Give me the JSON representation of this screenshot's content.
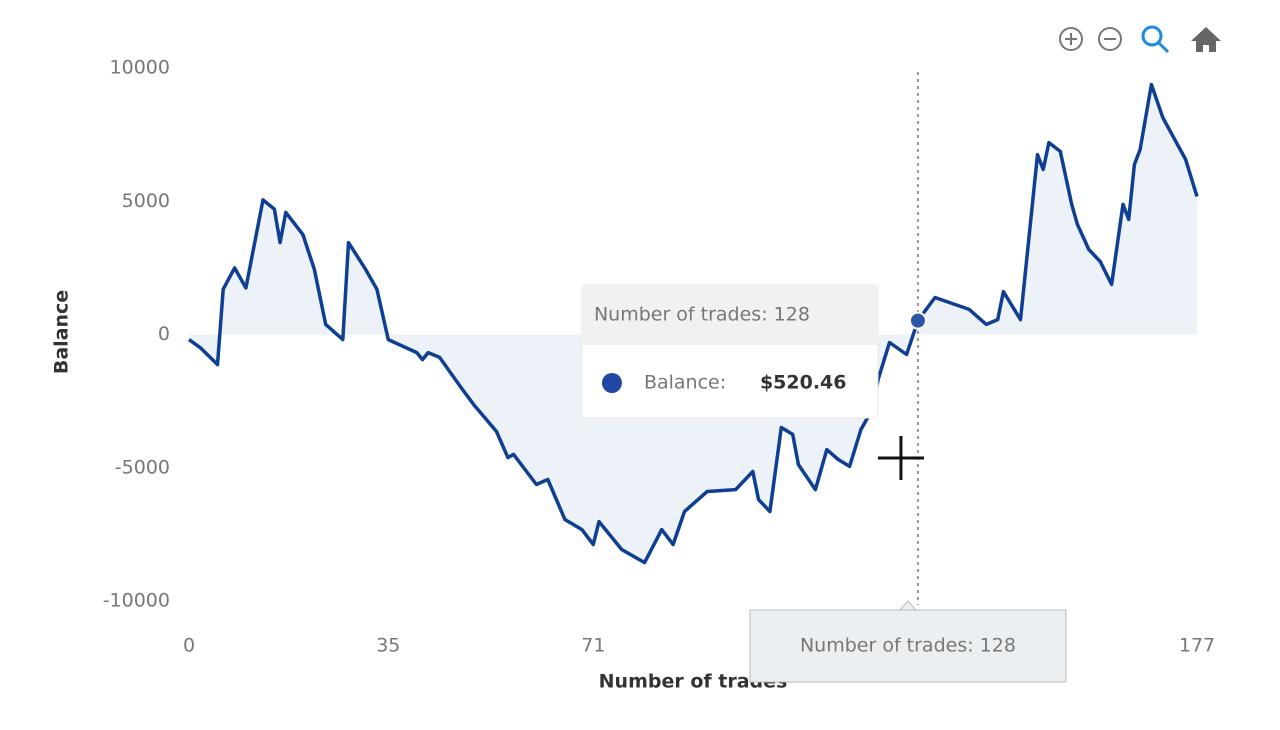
{
  "chart_data": {
    "type": "area",
    "x_label": "Number of trades",
    "y_label": "Balance",
    "x": [
      0,
      2,
      5,
      6,
      8,
      10,
      13,
      15,
      16,
      17,
      20,
      22,
      24,
      27,
      28,
      31,
      33,
      35,
      40,
      41,
      42,
      44,
      48,
      50,
      54,
      56,
      57,
      61,
      63,
      66,
      69,
      71,
      72,
      76,
      80,
      83,
      85,
      87,
      91,
      96,
      99,
      100,
      102,
      104,
      106,
      107,
      110,
      112,
      114,
      116,
      118,
      120,
      121,
      123,
      126,
      128,
      131,
      133,
      137,
      140,
      142,
      143,
      146,
      149,
      150,
      151,
      153,
      155,
      156,
      158,
      160,
      162,
      164,
      165,
      166,
      167,
      169,
      171,
      175,
      177
    ],
    "values": [
      -190,
      -500,
      -1130,
      1700,
      2500,
      1750,
      5050,
      4700,
      3450,
      4580,
      3750,
      2450,
      380,
      -190,
      3450,
      2450,
      1700,
      -190,
      -680,
      -940,
      -680,
      -860,
      -2060,
      -2630,
      -3640,
      -4620,
      -4500,
      -5630,
      -5440,
      -6940,
      -7320,
      -7880,
      -7020,
      -8070,
      -8560,
      -7320,
      -7880,
      -6640,
      -5890,
      -5820,
      -5140,
      -6190,
      -6640,
      -3490,
      -3750,
      -4880,
      -5820,
      -4320,
      -4690,
      -4950,
      -3560,
      -2810,
      -1690,
      -300,
      -750,
      520.46,
      1390,
      1240,
      940,
      380,
      560,
      1610,
      560,
      6750,
      6190,
      7200,
      6870,
      4880,
      4130,
      3190,
      2740,
      1880,
      4880,
      4320,
      6380,
      6940,
      9380,
      8140,
      6570,
      5180
    ],
    "value_labels": [
      null,
      null,
      null,
      null,
      null,
      null,
      null,
      null,
      null,
      null,
      null,
      null,
      null,
      null,
      null,
      null,
      null,
      null,
      null,
      null,
      null,
      null,
      null,
      null,
      null,
      null,
      null,
      null,
      null,
      null,
      null,
      null,
      null,
      null,
      null,
      null,
      null,
      null,
      null,
      null,
      null,
      null,
      null,
      null,
      null,
      null,
      null,
      null,
      null,
      null,
      null,
      null,
      null,
      null,
      null,
      "$520.46",
      null,
      null,
      null,
      null,
      null,
      null,
      null,
      null,
      null,
      null,
      null,
      null,
      null,
      null,
      null,
      null,
      null,
      null,
      null,
      null,
      null,
      null,
      null,
      null
    ],
    "color": "#0e3f93",
    "xlim": [
      0,
      177
    ],
    "xticks": [
      0,
      35,
      71,
      177
    ],
    "ylim": [
      -10000,
      10000
    ],
    "yticks": [
      10000,
      5000,
      0,
      -5000,
      -10000
    ],
    "grid": false,
    "tooltip": {
      "title": "Number of trades: 128",
      "label": "Balance:"
    },
    "x_tooltip": "Number of trades: 128"
  }
}
